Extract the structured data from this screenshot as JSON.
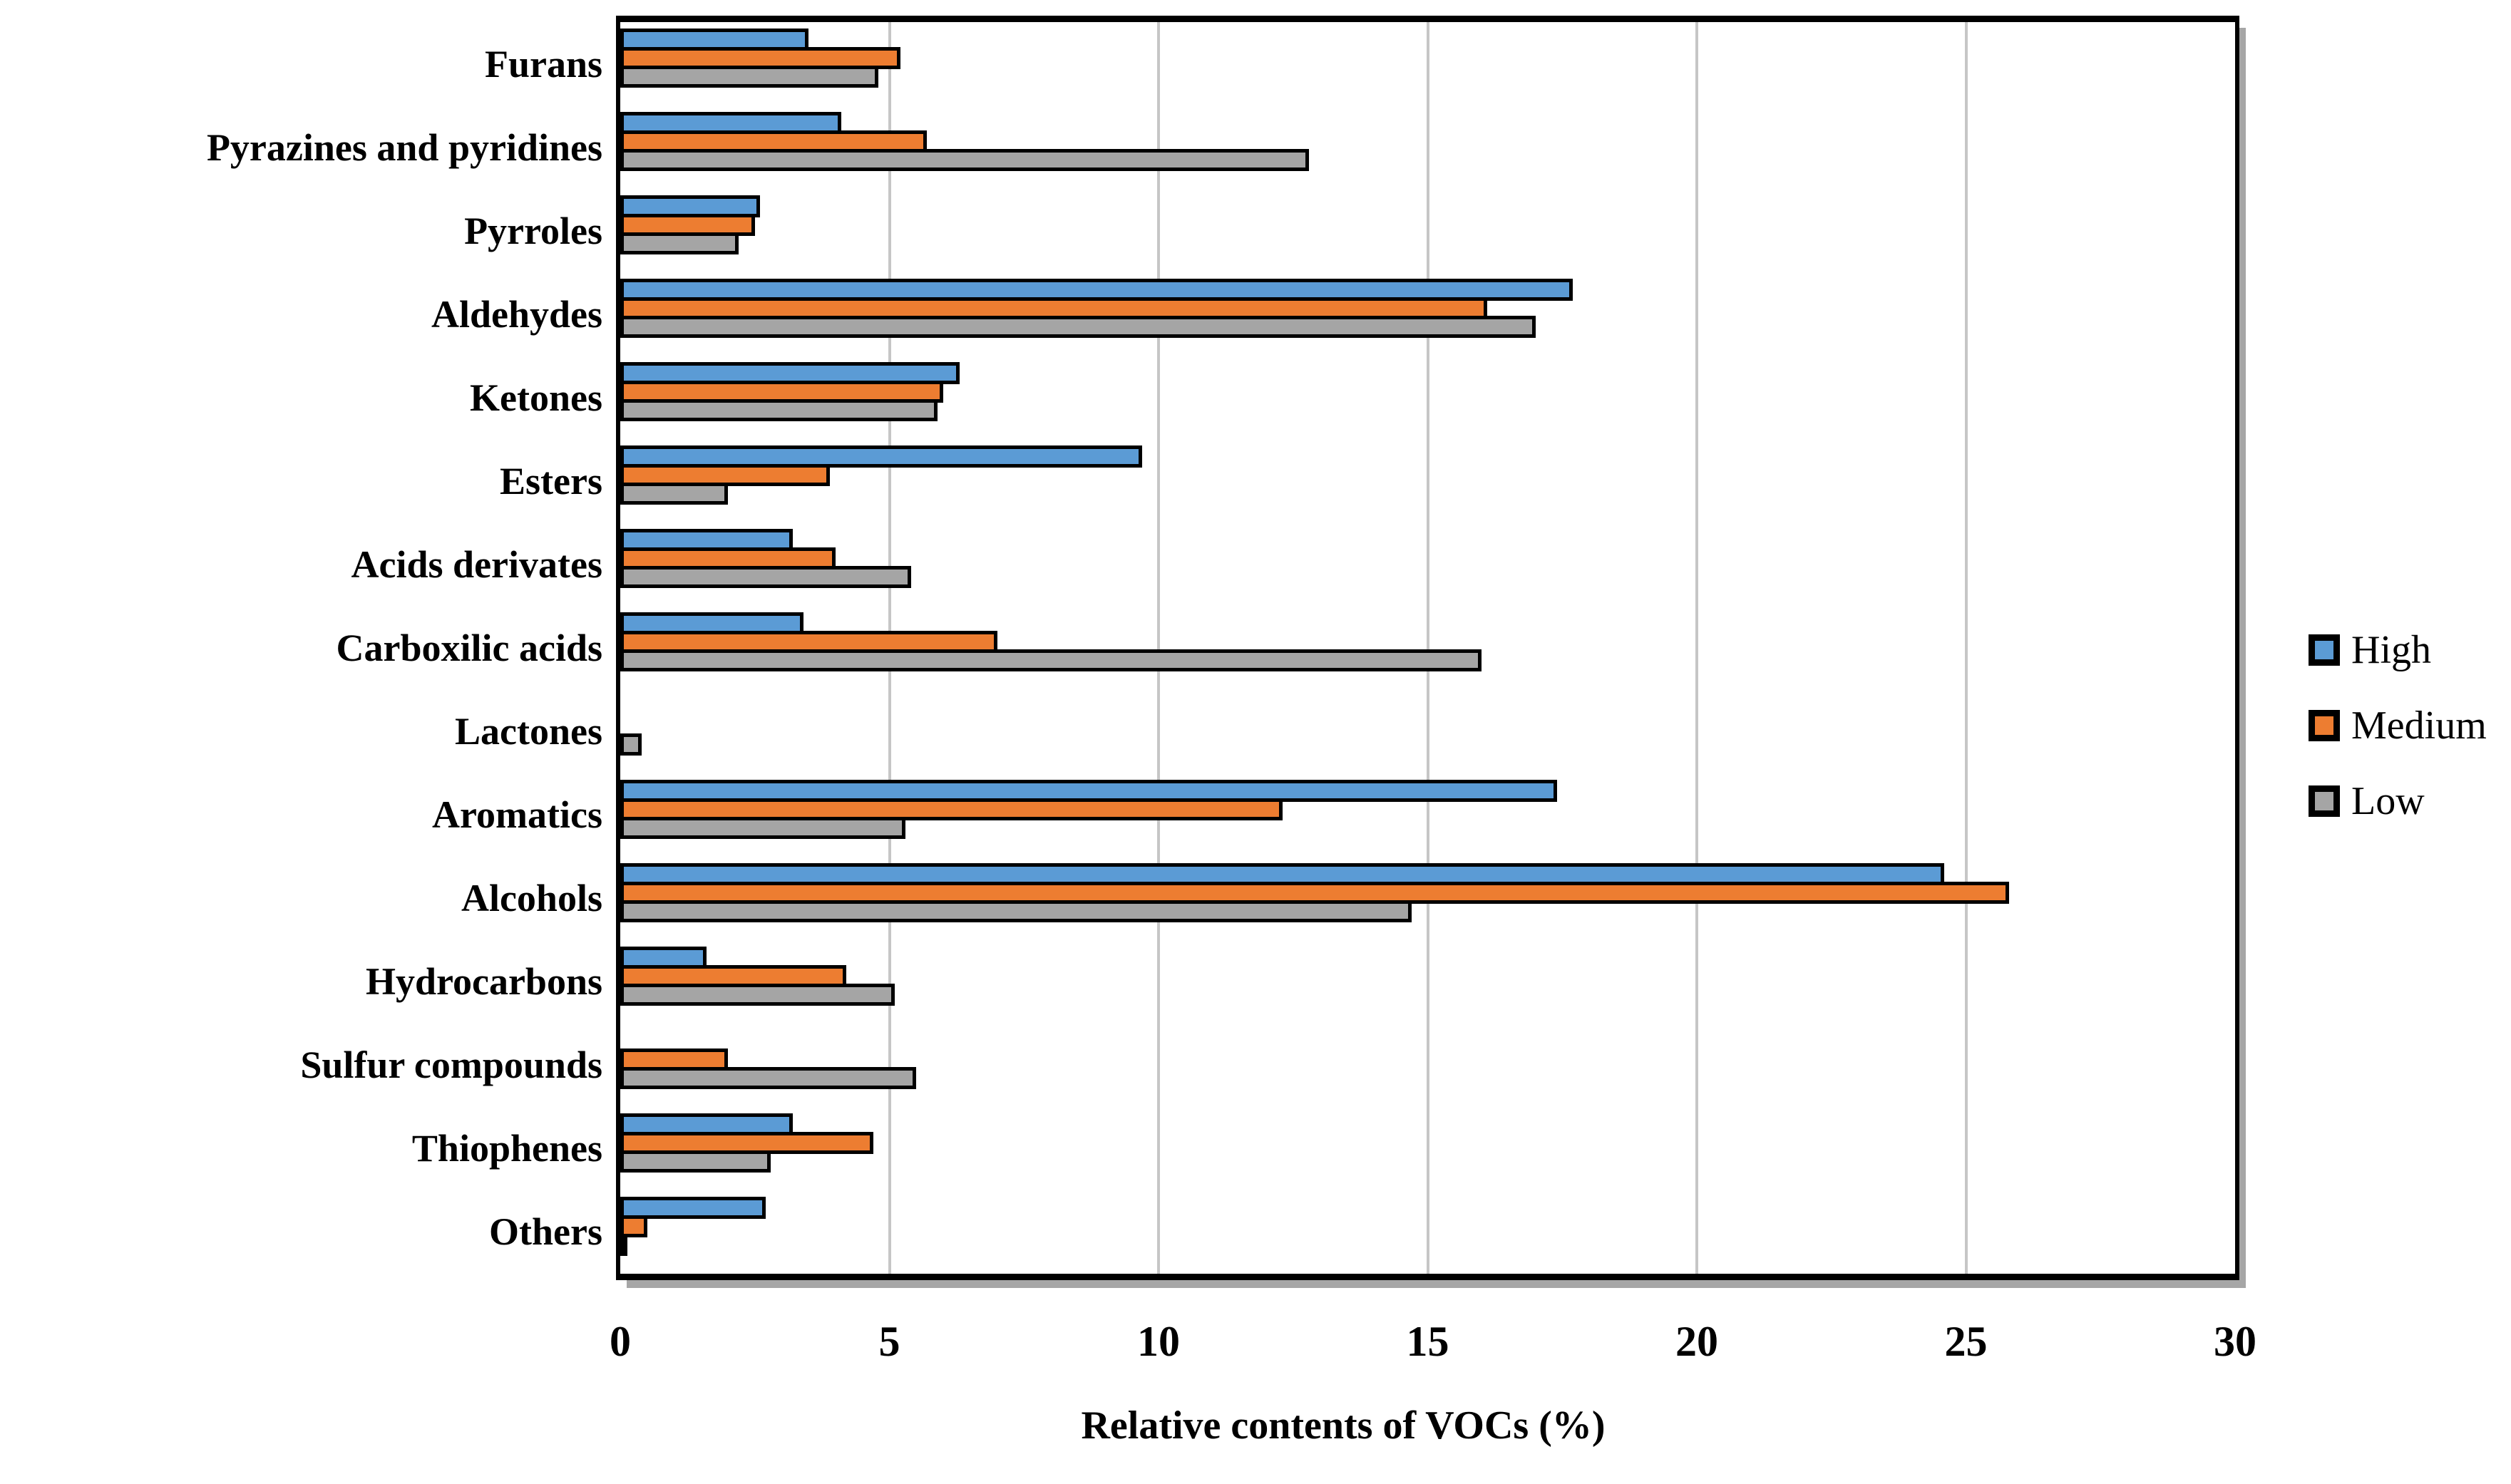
{
  "chart_data": {
    "type": "bar",
    "orientation": "horizontal",
    "title": "",
    "xlabel": "Relative contents of VOCs (%)",
    "ylabel": "",
    "xlim": [
      0,
      30
    ],
    "xticks": [
      0,
      5,
      10,
      15,
      20,
      25,
      30
    ],
    "grid": true,
    "legend_position": "right",
    "bar_border_color": "#000000",
    "gridline_color": "#c6c6c6",
    "categories": [
      "Furans",
      "Pyrazines and pyridines",
      "Pyrroles",
      "Aldehydes",
      "Ketones",
      "Esters",
      "Acids derivates",
      "Carboxilic acids",
      "Lactones",
      "Aromatics",
      "Alcohols",
      "Hydrocarbons",
      "Sulfur compounds",
      "Thiophenes",
      "Others"
    ],
    "series": [
      {
        "name": "High",
        "color": "#5B9BD5",
        "values": [
          3.5,
          4.1,
          2.6,
          17.7,
          6.3,
          9.7,
          3.2,
          3.4,
          0,
          17.4,
          24.6,
          1.6,
          0,
          3.2,
          2.7
        ]
      },
      {
        "name": "Medium",
        "color": "#ED7D31",
        "values": [
          5.2,
          5.7,
          2.5,
          16.1,
          6.0,
          3.9,
          4.0,
          7.0,
          0,
          12.3,
          25.8,
          4.2,
          2.0,
          4.7,
          0.5
        ]
      },
      {
        "name": "Low",
        "color": "#A5A5A5",
        "values": [
          4.8,
          12.8,
          2.2,
          17.0,
          5.9,
          2.0,
          5.4,
          16.0,
          0.4,
          5.3,
          14.7,
          5.1,
          5.5,
          2.8,
          0.1
        ]
      }
    ]
  }
}
